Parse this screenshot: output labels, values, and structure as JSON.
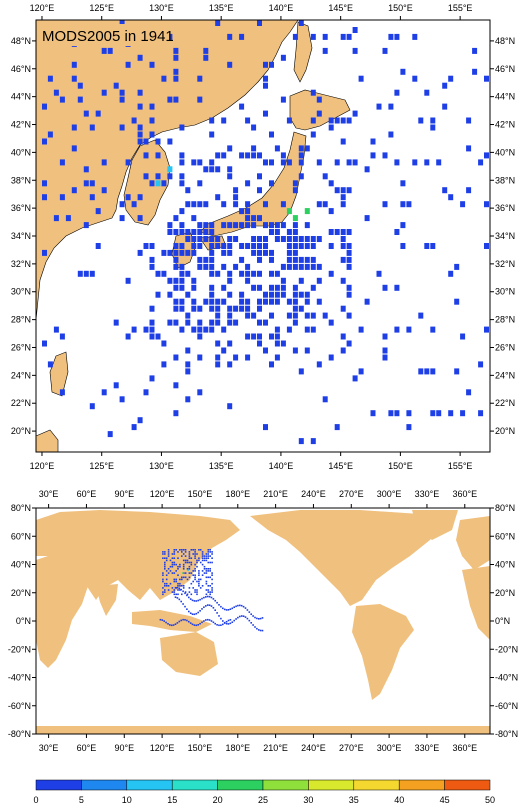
{
  "top_map": {
    "title": "MODS2005 in 1941",
    "x_ticks": [
      "120°E",
      "125°E",
      "130°E",
      "135°E",
      "140°E",
      "145°E",
      "150°E",
      "155°E"
    ],
    "y_ticks_left": [
      "48°N",
      "46°N",
      "44°N",
      "42°N",
      "40°N",
      "38°N",
      "36°N",
      "34°N",
      "32°N",
      "30°N",
      "28°N",
      "26°N",
      "24°N",
      "22°N",
      "20°N"
    ],
    "y_ticks_right": [
      "48°N",
      "46°N",
      "44°N",
      "42°N",
      "40°N",
      "38°N",
      "36°N",
      "34°N",
      "32°N",
      "30°N",
      "28°N",
      "26°N",
      "24°N",
      "22°N",
      "20°N"
    ],
    "lon_range": [
      119.5,
      157.5
    ],
    "lat_range": [
      18.5,
      49.5
    ]
  },
  "bottom_map": {
    "x_ticks": [
      "30°E",
      "60°E",
      "90°E",
      "120°E",
      "150°E",
      "180°E",
      "210°E",
      "240°E",
      "270°E",
      "300°E",
      "330°E",
      "360°E"
    ],
    "y_ticks_left": [
      "80°N",
      "60°N",
      "40°N",
      "20°N",
      "0°N",
      "-20°N",
      "-40°N",
      "-60°N",
      "-80°N"
    ],
    "y_ticks_right": [
      "80°N",
      "60°N",
      "40°N",
      "20°N",
      "0°N",
      "-20°N",
      "-40°N",
      "-60°N",
      "-80°N"
    ],
    "lon_range": [
      20,
      380
    ],
    "lat_range": [
      -80,
      80
    ]
  },
  "colorbar": {
    "labels": [
      "0",
      "5",
      "10",
      "15",
      "20",
      "25",
      "30",
      "35",
      "40",
      "45",
      "50"
    ],
    "colors": [
      "#1f3fe6",
      "#1e88f0",
      "#26c4f2",
      "#2be0c8",
      "#2bd060",
      "#8fe03a",
      "#d8e82c",
      "#f4d830",
      "#f4a020",
      "#ee5a12"
    ]
  },
  "colors": {
    "land": "#f0c07e",
    "obs_low": "#1f3fe6",
    "obs_mid": "#26c4f2",
    "obs_high": "#2bd060"
  }
}
